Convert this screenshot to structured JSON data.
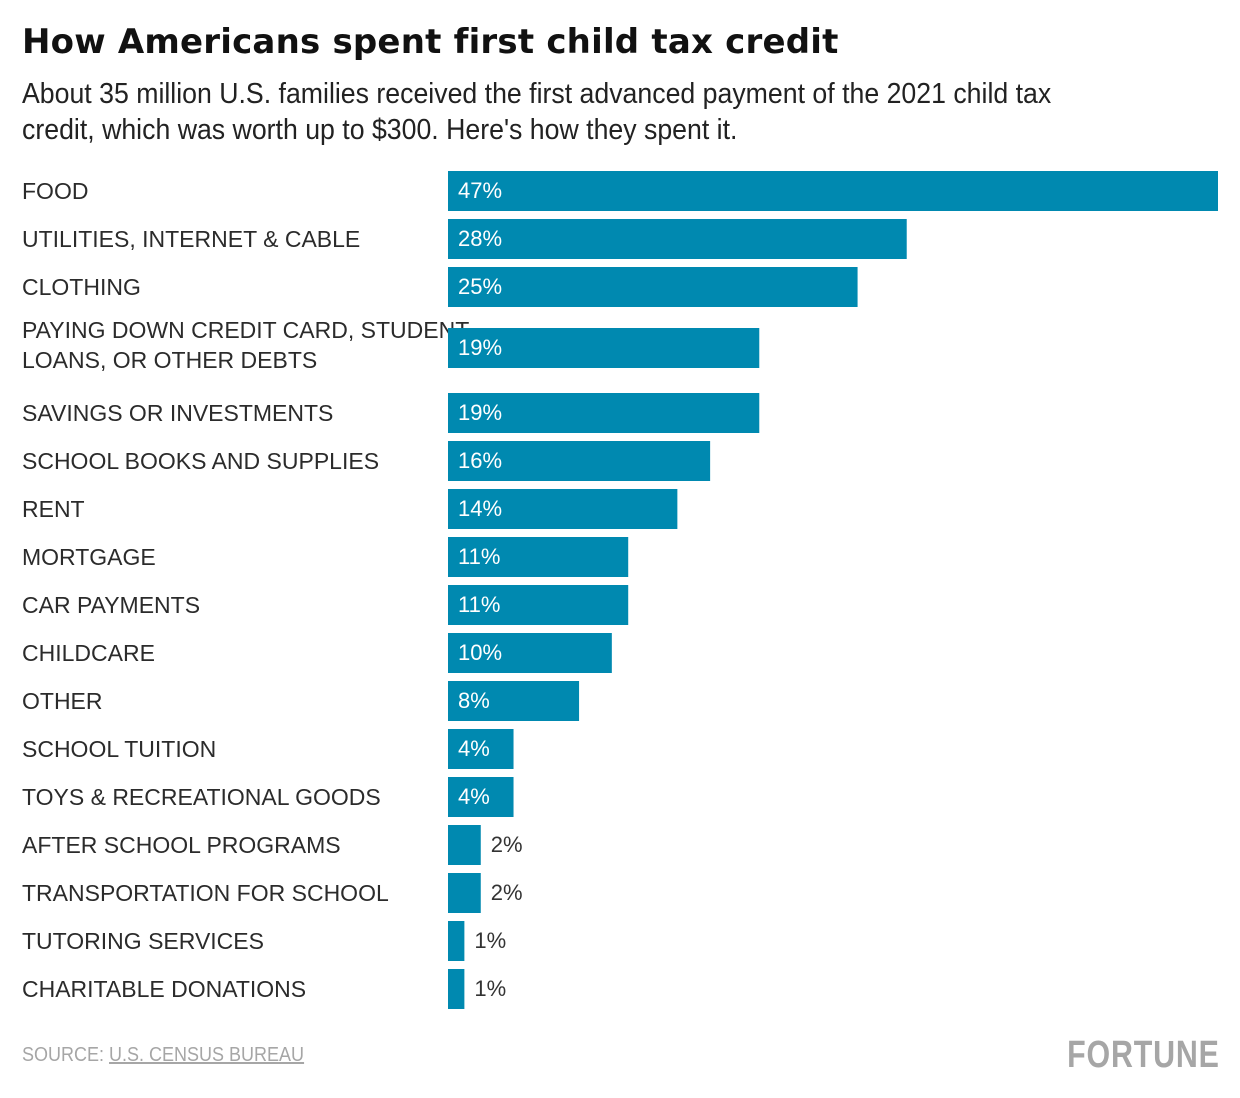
{
  "chart_data": {
    "type": "bar",
    "orientation": "horizontal",
    "title": "How Americans spent first child tax credit",
    "subtitle": "About 35 million U.S. families received the first advanced payment of the 2021 child tax credit, which was worth up to $300. Here's how they spent it.",
    "categories": [
      "FOOD",
      "UTILITIES, INTERNET & CABLE",
      "CLOTHING",
      "PAYING DOWN CREDIT CARD, STUDENT LOANS, OR OTHER DEBTS",
      "SAVINGS OR INVESTMENTS",
      "SCHOOL BOOKS AND SUPPLIES",
      "RENT",
      "MORTGAGE",
      "CAR PAYMENTS",
      "CHILDCARE",
      "OTHER",
      "SCHOOL TUITION",
      "TOYS & RECREATIONAL GOODS",
      "AFTER SCHOOL PROGRAMS",
      "TRANSPORTATION FOR SCHOOL",
      "TUTORING SERVICES",
      "CHARITABLE DONATIONS"
    ],
    "category_lines": [
      [
        "FOOD"
      ],
      [
        "UTILITIES, INTERNET & CABLE"
      ],
      [
        "CLOTHING"
      ],
      [
        "PAYING DOWN CREDIT CARD, STUDENT",
        "LOANS, OR OTHER DEBTS"
      ],
      [
        "SAVINGS OR INVESTMENTS"
      ],
      [
        "SCHOOL BOOKS AND SUPPLIES"
      ],
      [
        "RENT"
      ],
      [
        "MORTGAGE"
      ],
      [
        "CAR PAYMENTS"
      ],
      [
        "CHILDCARE"
      ],
      [
        "OTHER"
      ],
      [
        "SCHOOL TUITION"
      ],
      [
        "TOYS & RECREATIONAL GOODS"
      ],
      [
        "AFTER SCHOOL PROGRAMS"
      ],
      [
        "TRANSPORTATION FOR SCHOOL"
      ],
      [
        "TUTORING SERVICES"
      ],
      [
        "CHARITABLE DONATIONS"
      ]
    ],
    "values": [
      47,
      28,
      25,
      19,
      19,
      16,
      14,
      11,
      11,
      10,
      8,
      4,
      4,
      2,
      2,
      1,
      1
    ],
    "value_suffix": "%",
    "xlabel": "",
    "ylabel": "",
    "xlim": [
      0,
      47
    ],
    "grid": false,
    "legend": "none",
    "bar_color": "#0089b0"
  },
  "footer": {
    "source_prefix": "SOURCE: ",
    "source_link": "U.S. CENSUS BUREAU",
    "brand": "FORTUNE"
  }
}
